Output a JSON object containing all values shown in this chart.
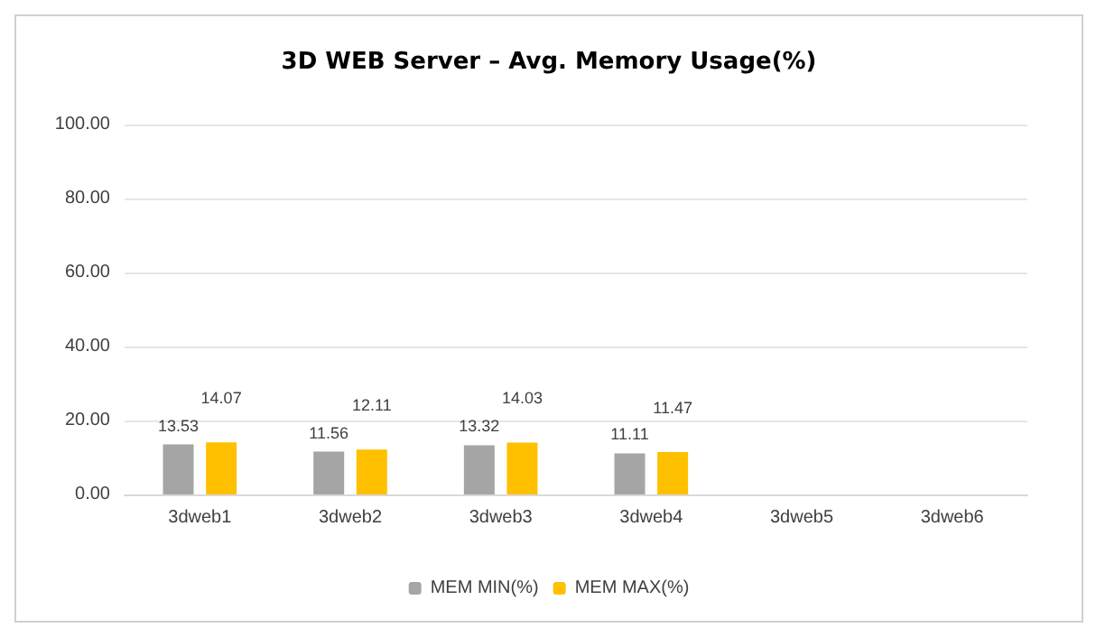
{
  "chart_data": {
    "type": "bar",
    "title": "3D WEB Server – Avg. Memory Usage(%)",
    "categories": [
      "3dweb1",
      "3dweb2",
      "3dweb3",
      "3dweb4",
      "3dweb5",
      "3dweb6"
    ],
    "series": [
      {
        "name": "MEM MIN(%)",
        "color": "#a5a5a5",
        "values": [
          13.53,
          11.56,
          13.32,
          11.11,
          null,
          null
        ]
      },
      {
        "name": "MEM MAX(%)",
        "color": "#ffc000",
        "values": [
          14.07,
          12.11,
          14.03,
          11.47,
          null,
          null
        ]
      }
    ],
    "ylim": [
      0,
      100
    ],
    "yticks": [
      {
        "value": 0,
        "label": "0.00"
      },
      {
        "value": 20,
        "label": "20.00"
      },
      {
        "value": 40,
        "label": "40.00"
      },
      {
        "value": 60,
        "label": "60.00"
      },
      {
        "value": 80,
        "label": "80.00"
      },
      {
        "value": 100,
        "label": "100.00"
      }
    ],
    "grid": "y",
    "legend": "bottom",
    "data_labels": true
  }
}
